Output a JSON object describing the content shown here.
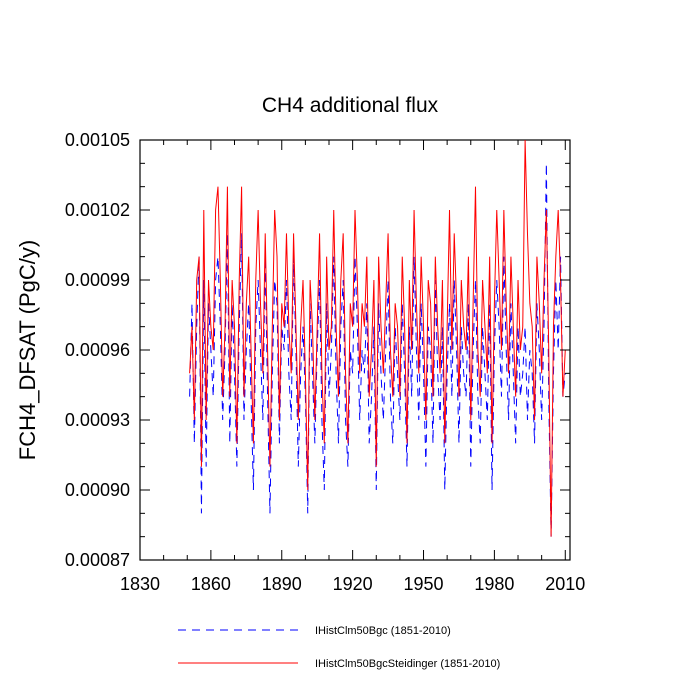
{
  "chart_data": {
    "type": "line",
    "title": "CH4 additional flux",
    "xlabel": "",
    "ylabel": "FCH4_DFSAT  (PgC/y)",
    "xlim": [
      1830,
      2012
    ],
    "ylim": [
      0.00087,
      0.00105
    ],
    "x_ticks": [
      1830,
      1860,
      1890,
      1920,
      1950,
      1980,
      2010
    ],
    "x_tick_labels": [
      "1830",
      "1860",
      "1890",
      "1920",
      "1950",
      "1980",
      "2010"
    ],
    "y_ticks": [
      0.00087,
      0.0009,
      0.00093,
      0.00096,
      0.00099,
      0.00102,
      0.00105
    ],
    "y_tick_labels": [
      "0.00087",
      "0.00090",
      "0.00093",
      "0.00096",
      "0.00099",
      "0.00102",
      "0.00105"
    ],
    "grid": false,
    "legend_position": "bottom",
    "series": [
      {
        "name": "IHistClm50Bgc (1851-2010)",
        "color": "#0000ff",
        "style": "dashed",
        "x_start": 1851,
        "x_end": 2010,
        "values": [
          0.00094,
          0.00098,
          0.00092,
          0.00097,
          0.001,
          0.00089,
          0.00099,
          0.00091,
          0.00098,
          0.00096,
          0.00094,
          0.00099,
          0.001,
          0.00097,
          0.00093,
          0.00096,
          0.00101,
          0.00092,
          0.00098,
          0.00095,
          0.00091,
          0.00097,
          0.00101,
          0.00093,
          0.00096,
          0.00098,
          0.00094,
          0.0009,
          0.00097,
          0.00099,
          0.00096,
          0.00093,
          0.001,
          0.00094,
          0.00089,
          0.00095,
          0.00099,
          0.00098,
          0.00092,
          0.00097,
          0.00096,
          0.00099,
          0.00095,
          0.00093,
          0.001,
          0.00096,
          0.00091,
          0.00095,
          0.00097,
          0.00094,
          0.00089,
          0.00098,
          0.00095,
          0.00092,
          0.00096,
          0.00099,
          0.00093,
          0.0009,
          0.00098,
          0.00094,
          0.00096,
          0.001,
          0.00095,
          0.00092,
          0.00097,
          0.00099,
          0.00093,
          0.00091,
          0.00096,
          0.00095,
          0.001,
          0.00097,
          0.00093,
          0.00096,
          0.00095,
          0.00098,
          0.00092,
          0.00094,
          0.00097,
          0.0009,
          0.00098,
          0.00095,
          0.00093,
          0.00096,
          0.00099,
          0.00094,
          0.00092,
          0.00097,
          0.00095,
          0.00093,
          0.00098,
          0.00095,
          0.00091,
          0.00097,
          0.00094,
          0.001,
          0.00096,
          0.00093,
          0.00098,
          0.00095,
          0.00091,
          0.00097,
          0.00096,
          0.00092,
          0.00099,
          0.00095,
          0.00093,
          0.00097,
          0.0009,
          0.00095,
          0.00098,
          0.00094,
          0.00099,
          0.00096,
          0.00092,
          0.00097,
          0.00095,
          0.00094,
          0.00098,
          0.00091,
          0.00096,
          0.00099,
          0.00094,
          0.00092,
          0.00097,
          0.00095,
          0.00093,
          0.00098,
          0.0009,
          0.00096,
          0.00099,
          0.00097,
          0.00094,
          0.001,
          0.00096,
          0.00093,
          0.00098,
          0.00095,
          0.00092,
          0.00097,
          0.00094,
          0.00095,
          0.00097,
          0.00093,
          0.00096,
          0.00095,
          0.00092,
          0.00098,
          0.00096,
          0.00093,
          0.00097,
          0.00104,
          0.00094,
          0.00088,
          0.00095,
          0.00099,
          0.00096,
          0.001,
          0.00094,
          0.00095
        ]
      },
      {
        "name": "IHistClm50BgcSteidinger (1851-2010)",
        "color": "#ff0000",
        "style": "solid",
        "x_start": 1851,
        "x_end": 2010,
        "values": [
          0.00095,
          0.00097,
          0.00093,
          0.00099,
          0.001,
          0.00091,
          0.00102,
          0.00093,
          0.00099,
          0.00097,
          0.00096,
          0.00102,
          0.00103,
          0.00099,
          0.00094,
          0.00097,
          0.00103,
          0.00094,
          0.00099,
          0.00097,
          0.00092,
          0.00099,
          0.00103,
          0.00094,
          0.00098,
          0.001,
          0.00096,
          0.00092,
          0.00099,
          0.00102,
          0.00098,
          0.00095,
          0.00101,
          0.00096,
          0.00091,
          0.00097,
          0.00102,
          0.001,
          0.00093,
          0.00098,
          0.00097,
          0.00101,
          0.00097,
          0.00095,
          0.00101,
          0.00097,
          0.00093,
          0.00097,
          0.00099,
          0.00095,
          0.0009,
          0.00099,
          0.00097,
          0.00093,
          0.00097,
          0.00101,
          0.00095,
          0.00092,
          0.001,
          0.00096,
          0.00097,
          0.00102,
          0.00097,
          0.00094,
          0.00099,
          0.00101,
          0.00095,
          0.00092,
          0.00098,
          0.00097,
          0.00102,
          0.00099,
          0.00095,
          0.00098,
          0.00097,
          0.001,
          0.00094,
          0.00096,
          0.00099,
          0.00091,
          0.001,
          0.00097,
          0.00095,
          0.00098,
          0.00101,
          0.00096,
          0.00094,
          0.00098,
          0.00097,
          0.00094,
          0.001,
          0.00097,
          0.00092,
          0.00099,
          0.00096,
          0.00102,
          0.00098,
          0.00095,
          0.001,
          0.00097,
          0.00093,
          0.00099,
          0.00098,
          0.00094,
          0.001,
          0.00097,
          0.00095,
          0.00099,
          0.00092,
          0.00097,
          0.00102,
          0.00096,
          0.00101,
          0.00098,
          0.00094,
          0.00099,
          0.00097,
          0.00096,
          0.001,
          0.00093,
          0.00098,
          0.00103,
          0.00096,
          0.00094,
          0.00099,
          0.00097,
          0.00095,
          0.001,
          0.00092,
          0.00098,
          0.00102,
          0.00099,
          0.00096,
          0.00102,
          0.00098,
          0.00095,
          0.001,
          0.00097,
          0.00094,
          0.00099,
          0.00096,
          0.00097,
          0.00105,
          0.00101,
          0.00098,
          0.00097,
          0.00093,
          0.001,
          0.00098,
          0.00095,
          0.00099,
          0.00102,
          0.00096,
          0.00088,
          0.00097,
          0.001,
          0.00102,
          0.00099,
          0.00094,
          0.00096
        ]
      }
    ]
  }
}
